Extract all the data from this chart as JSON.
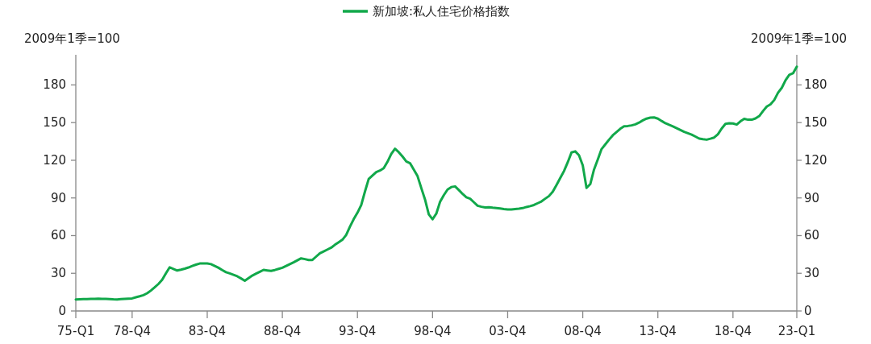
{
  "chart_data": {
    "type": "line",
    "ylabel": "2009年1季=100",
    "y2label": "2009年1季=100",
    "legend": "top",
    "ylim": [
      0,
      204
    ],
    "y2lim": [
      0,
      204
    ],
    "yticks": [
      0,
      30,
      60,
      90,
      120,
      150,
      180
    ],
    "y2ticks": [
      0,
      30,
      60,
      90,
      120,
      150,
      180
    ],
    "grid": false,
    "marker": "none",
    "line_style": "solid",
    "categories": [
      "75-Q1",
      null,
      null,
      null,
      null,
      null,
      null,
      null,
      null,
      null,
      null,
      null,
      null,
      null,
      null,
      "78-Q4",
      null,
      null,
      null,
      null,
      null,
      null,
      null,
      null,
      null,
      null,
      null,
      null,
      null,
      null,
      null,
      null,
      null,
      null,
      null,
      "83-Q4",
      null,
      null,
      null,
      null,
      null,
      null,
      null,
      null,
      null,
      null,
      null,
      null,
      null,
      null,
      null,
      null,
      null,
      null,
      null,
      "88-Q4",
      null,
      null,
      null,
      null,
      null,
      null,
      null,
      null,
      null,
      null,
      null,
      null,
      null,
      null,
      null,
      null,
      null,
      null,
      null,
      "93-Q4",
      null,
      null,
      null,
      null,
      null,
      null,
      null,
      null,
      null,
      null,
      null,
      null,
      null,
      null,
      null,
      null,
      null,
      null,
      null,
      "98-Q4",
      null,
      null,
      null,
      null,
      null,
      null,
      null,
      null,
      null,
      null,
      null,
      null,
      null,
      null,
      null,
      null,
      null,
      null,
      null,
      "03-Q4",
      null,
      null,
      null,
      null,
      null,
      null,
      null,
      null,
      null,
      null,
      null,
      null,
      null,
      null,
      null,
      null,
      null,
      null,
      null,
      "08-Q4",
      null,
      null,
      null,
      null,
      null,
      null,
      null,
      null,
      null,
      null,
      null,
      null,
      null,
      null,
      null,
      null,
      null,
      null,
      null,
      "13-Q4",
      null,
      null,
      null,
      null,
      null,
      null,
      null,
      null,
      null,
      null,
      null,
      null,
      null,
      null,
      null,
      null,
      null,
      null,
      null,
      "18-Q4",
      null,
      null,
      null,
      null,
      null,
      null,
      null,
      null,
      null,
      null,
      null,
      null,
      null,
      null,
      null,
      null,
      "23-Q1"
    ],
    "series": [
      {
        "name": "新加坡:私人住宅价格指数",
        "color": "#11a84a",
        "values": [
          9.2,
          9.3,
          9.4,
          9.5,
          9.6,
          9.7,
          9.8,
          9.7,
          9.6,
          9.5,
          9.3,
          9.2,
          9.4,
          9.6,
          9.8,
          10,
          10.9,
          11.7,
          12.6,
          14.1,
          16.3,
          18.8,
          21.5,
          24.8,
          30,
          34.8,
          33.5,
          32.2,
          32.9,
          33.7,
          34.6,
          35.8,
          36.9,
          37.8,
          37.8,
          37.8,
          37.3,
          35.9,
          34.4,
          32.6,
          30.9,
          29.9,
          28.8,
          27.6,
          25.9,
          24.1,
          26.2,
          28.2,
          29.7,
          31.2,
          32.7,
          32.3,
          31.9,
          32.6,
          33.5,
          34.4,
          35.8,
          37.3,
          38.7,
          40.3,
          41.9,
          41.3,
          40.6,
          40.6,
          43.3,
          45.9,
          47.4,
          48.9,
          50.4,
          52.7,
          54.7,
          56.7,
          60.5,
          67.1,
          73.1,
          78.2,
          84.3,
          95.1,
          105.1,
          107.9,
          110.6,
          111.8,
          113.7,
          118.8,
          125,
          129.2,
          126.4,
          123,
          119.1,
          117.7,
          112.6,
          107.4,
          97.9,
          88.7,
          76.9,
          73,
          77.5,
          86.9,
          92.2,
          96.7,
          98.7,
          99.2,
          96.3,
          93.2,
          90.6,
          89.4,
          86.6,
          83.8,
          83,
          82.5,
          82.6,
          82.2,
          81.9,
          81.6,
          81.2,
          80.9,
          80.8,
          81.2,
          81.5,
          81.9,
          82.8,
          83.5,
          84.4,
          85.8,
          87.2,
          89.4,
          91.5,
          94.9,
          100.3,
          105.8,
          111.4,
          118.4,
          126.2,
          127.1,
          124,
          116,
          98,
          101,
          112.6,
          120.6,
          128.9,
          132.6,
          136.4,
          139.9,
          142.5,
          145.1,
          147,
          147.3,
          147.8,
          148.6,
          150,
          151.8,
          153.2,
          154,
          154.1,
          153.2,
          151.3,
          149.5,
          148.2,
          147,
          145.6,
          144.1,
          142.6,
          141.5,
          140.4,
          138.9,
          137.3,
          136.8,
          136.4,
          137.2,
          138.1,
          140.7,
          145.3,
          149,
          149.4,
          149.3,
          148.4,
          151,
          153,
          152.3,
          152.3,
          153.3,
          155.2,
          159.2,
          162.8,
          164.5,
          168,
          173.8,
          177.7,
          183.7,
          188.1,
          189.3,
          194.5
        ]
      }
    ]
  }
}
